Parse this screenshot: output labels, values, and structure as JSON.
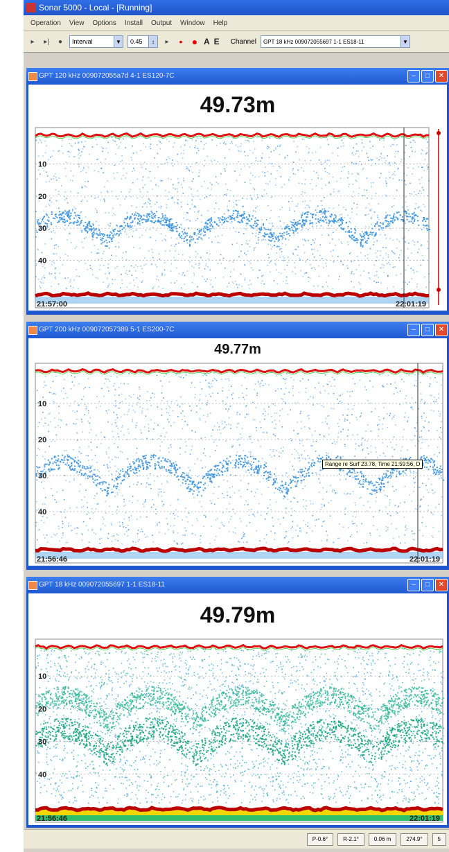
{
  "app": {
    "title": "Sonar 5000 - Local - [Running]"
  },
  "menu": [
    "Operation",
    "View",
    "Options",
    "Install",
    "Output",
    "Window",
    "Help"
  ],
  "toolbar": {
    "mode": "Interval",
    "interval_value": "0.45",
    "a_label": "A",
    "e_label": "E",
    "channel_label": "Channel",
    "channel_value": "GPT 18 kHz 009072055697 1-1 ES18-11"
  },
  "panels": [
    {
      "title": "GPT 120 kHz 009072055a7d 4-1 ES120-7C",
      "depth": "49.73m",
      "depth_ticks": [
        "10",
        "20",
        "30",
        "40"
      ],
      "time_start": "21:57:00",
      "time_end": "22:01:19",
      "palette": "blue"
    },
    {
      "title": "GPT 200 kHz 009072057389 5-1 ES200-7C",
      "depth": "49.77m",
      "depth_ticks": [
        "10",
        "20",
        "30",
        "40"
      ],
      "time_start": "21:56:46",
      "time_end": "22:01:19",
      "tooltip": "Range re Surf 23.78, Time 21:59:56, D",
      "palette": "blue"
    },
    {
      "title": "GPT 18 kHz 009072055697 1-1 ES18-11",
      "depth": "49.79m",
      "depth_ticks": [
        "10",
        "20",
        "30",
        "40"
      ],
      "time_start": "21:56:46",
      "time_end": "22:01:19",
      "palette": "green"
    }
  ],
  "status": [
    "P-0.6°",
    "R-2.1°",
    "0.06 m",
    "274.9°",
    "5"
  ]
}
